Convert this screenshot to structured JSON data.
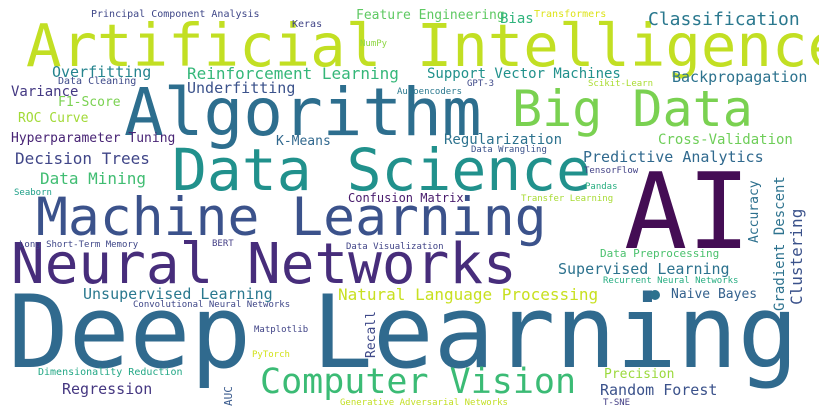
{
  "wordcloud": {
    "words": [
      {
        "id": "deep-learning",
        "text": "Deep Learning",
        "color": "#306a8e"
      },
      {
        "id": "artificial-intelligence",
        "text": "Artificial Intelligence",
        "color": "#c2df23"
      },
      {
        "id": "ai",
        "text": "AI",
        "color": "#440d54"
      },
      {
        "id": "algorithm",
        "text": "Algorithm",
        "color": "#2d6e8e"
      },
      {
        "id": "big-data",
        "text": "Big Data",
        "color": "#7ad151"
      },
      {
        "id": "data-science",
        "text": "Data Science",
        "color": "#21918c"
      },
      {
        "id": "machine-learning",
        "text": "Machine Learning",
        "color": "#3b528b"
      },
      {
        "id": "neural-networks",
        "text": "Neural Networks",
        "color": "#472d7b"
      },
      {
        "id": "computer-vision",
        "text": "Computer Vision",
        "color": "#3bbb75"
      },
      {
        "id": "principal-component-analysis",
        "text": "Principal Component Analysis",
        "color": "#3f4788"
      },
      {
        "id": "keras",
        "text": "Keras",
        "color": "#414487"
      },
      {
        "id": "feature-engineering",
        "text": "Feature Engineering",
        "color": "#5ec962"
      },
      {
        "id": "transformers",
        "text": "Transformers",
        "color": "#dde318"
      },
      {
        "id": "bias",
        "text": "Bias",
        "color": "#2fb47c"
      },
      {
        "id": "classification",
        "text": "Classification",
        "color": "#2a788e"
      },
      {
        "id": "numpy",
        "text": "NumPy",
        "color": "#8fd744"
      },
      {
        "id": "data-cleaning",
        "text": "Data Cleaning",
        "color": "#3e4a89"
      },
      {
        "id": "overfitting",
        "text": "Overfitting",
        "color": "#25848e"
      },
      {
        "id": "reinforcement-learning",
        "text": "Reinforcement Learning",
        "color": "#35b779"
      },
      {
        "id": "support-vector-machines",
        "text": "Support Vector Machines",
        "color": "#21918c"
      },
      {
        "id": "gpt-3",
        "text": "GPT-3",
        "color": "#3e4989"
      },
      {
        "id": "scikit-learn",
        "text": "Scikit-Learn",
        "color": "#aadc32"
      },
      {
        "id": "backpropagation",
        "text": "Backpropagation",
        "color": "#2c728e"
      },
      {
        "id": "variance",
        "text": "Variance",
        "color": "#443983"
      },
      {
        "id": "underfitting",
        "text": "Underfitting",
        "color": "#3b528b"
      },
      {
        "id": "autoencoders",
        "text": "Autoencoders",
        "color": "#2a788e"
      },
      {
        "id": "f1-score",
        "text": "F1-Score",
        "color": "#7ad151"
      },
      {
        "id": "roc-curve",
        "text": "ROC Curve",
        "color": "#a2da37"
      },
      {
        "id": "hyperparameter-tuning",
        "text": "Hyperparameter Tuning",
        "color": "#482475"
      },
      {
        "id": "k-means",
        "text": "K-Means",
        "color": "#31688e"
      },
      {
        "id": "regularization",
        "text": "Regularization",
        "color": "#2c728e"
      },
      {
        "id": "cross-validation",
        "text": "Cross-Validation",
        "color": "#6ece58"
      },
      {
        "id": "data-wrangling",
        "text": "Data Wrangling",
        "color": "#3b528b"
      },
      {
        "id": "decision-trees",
        "text": "Decision Trees",
        "color": "#404688"
      },
      {
        "id": "predictive-analytics",
        "text": "Predictive Analytics",
        "color": "#30698e"
      },
      {
        "id": "data-mining",
        "text": "Data Mining",
        "color": "#40bd72"
      },
      {
        "id": "tensorflow",
        "text": "TensorFlow",
        "color": "#424186"
      },
      {
        "id": "accuracy",
        "text": "Accuracy",
        "color": "#2d708e"
      },
      {
        "id": "seaborn",
        "text": "Seaborn",
        "color": "#1fa088"
      },
      {
        "id": "confusion-matrix",
        "text": "Confusion Matrix",
        "color": "#481a6c"
      },
      {
        "id": "pandas",
        "text": "Pandas",
        "color": "#28ae80"
      },
      {
        "id": "gradient-descent",
        "text": "Gradient Descent",
        "color": "#2c728e"
      },
      {
        "id": "transfer-learning",
        "text": "Transfer Learning",
        "color": "#a8db34"
      },
      {
        "id": "clustering",
        "text": "Clustering",
        "color": "#3b528b"
      },
      {
        "id": "long-short-term-memory",
        "text": "Long Short-Term Memory",
        "color": "#3f4788"
      },
      {
        "id": "bert",
        "text": "BERT",
        "color": "#433e85"
      },
      {
        "id": "data-visualization",
        "text": "Data Visualization",
        "color": "#414487"
      },
      {
        "id": "data-preprocessing",
        "text": "Data Preprocessing",
        "color": "#4ac16d"
      },
      {
        "id": "supervised-learning",
        "text": "Supervised Learning",
        "color": "#2c728e"
      },
      {
        "id": "recurrent-neural-networks",
        "text": "Recurrent Neural Networks",
        "color": "#26ad81"
      },
      {
        "id": "unsupervised-learning",
        "text": "Unsupervised Learning",
        "color": "#2a788e"
      },
      {
        "id": "natural-language-processing",
        "text": "Natural Language Processing",
        "color": "#c8e020"
      },
      {
        "id": "naive-bayes",
        "text": "Naive Bayes",
        "color": "#34618d"
      },
      {
        "id": "convolutional-neural-networks",
        "text": "Convolutional Neural Networks",
        "color": "#3f4788"
      },
      {
        "id": "matplotlib",
        "text": "Matplotlib",
        "color": "#414487"
      },
      {
        "id": "recall",
        "text": "Recall",
        "color": "#3e4989"
      },
      {
        "id": "pytorch",
        "text": "PyTorch",
        "color": "#d2e21b"
      },
      {
        "id": "dimensionality-reduction",
        "text": "Dimensionality Reduction",
        "color": "#22a785"
      },
      {
        "id": "precision",
        "text": "Precision",
        "color": "#9bd93c"
      },
      {
        "id": "regression",
        "text": "Regression",
        "color": "#453781"
      },
      {
        "id": "random-forest",
        "text": "Random Forest",
        "color": "#3b528b"
      },
      {
        "id": "auc",
        "text": "AUC",
        "color": "#38598c"
      },
      {
        "id": "generative-adversarial-networks",
        "text": "Generative Adversarial Networks",
        "color": "#c2df23"
      },
      {
        "id": "t-sne",
        "text": "T-SNE",
        "color": "#433e85"
      }
    ]
  }
}
